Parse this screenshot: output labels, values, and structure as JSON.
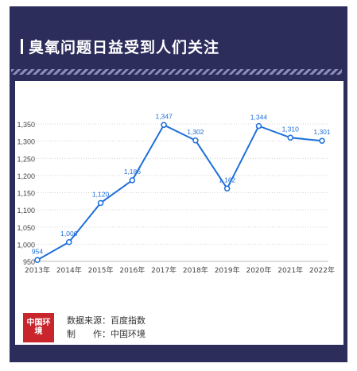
{
  "header": {
    "title": "臭氧问题日益受到人们关注"
  },
  "footer": {
    "logo_text": "中国环境",
    "source_label": "数据来源：百度指数",
    "maker_label": "制　　作：中国环境"
  },
  "chart_data": {
    "type": "line",
    "title": "",
    "xlabel": "",
    "ylabel": "",
    "categories": [
      "2013年",
      "2014年",
      "2015年",
      "2016年",
      "2017年",
      "2018年",
      "2019年",
      "2020年",
      "2021年",
      "2022年"
    ],
    "values": [
      954,
      1006,
      1120,
      1186,
      1347,
      1302,
      1162,
      1344,
      1310,
      1301
    ],
    "data_labels": [
      "954",
      "1,006",
      "1,120",
      "1,186",
      "1,347",
      "1,302",
      "1,162",
      "1,344",
      "1,310",
      "1,301"
    ],
    "yticks": [
      "950",
      "1,000",
      "1,050",
      "1,100",
      "1,150",
      "1,200",
      "1,250",
      "1,300",
      "1,350"
    ],
    "ylim": [
      950,
      1350
    ],
    "grid": true,
    "line_color": "#1e6fd9"
  }
}
